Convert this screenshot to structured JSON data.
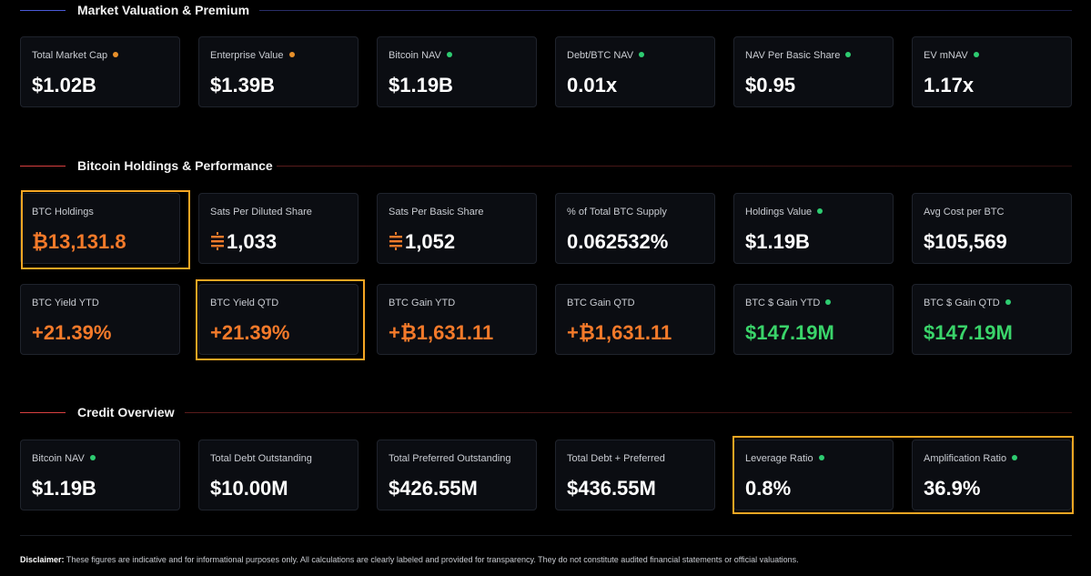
{
  "colors": {
    "accent_orange": "#f47a2a",
    "accent_green": "#3ad46a",
    "dot_orange": "#e8902a",
    "dot_green": "#2ecc71",
    "highlight": "#f5a623",
    "section_market_line": "#4a5ad8",
    "section_red_line": "#d94040"
  },
  "sections": {
    "market": {
      "title": "Market Valuation & Premium",
      "cards": [
        {
          "label": "Total Market Cap",
          "value": "$1.02B",
          "dot": "orange"
        },
        {
          "label": "Enterprise Value",
          "value": "$1.39B",
          "dot": "orange"
        },
        {
          "label": "Bitcoin NAV",
          "value": "$1.19B",
          "dot": "green"
        },
        {
          "label": "Debt/BTC NAV",
          "value": "0.01x",
          "dot": "green"
        },
        {
          "label": "NAV Per Basic Share",
          "value": "$0.95",
          "dot": "green"
        },
        {
          "label": "EV mNAV",
          "value": "1.17x",
          "dot": "green"
        }
      ]
    },
    "holdings": {
      "title": "Bitcoin Holdings & Performance",
      "cards": [
        {
          "label": "BTC Holdings",
          "value": "₿13,131.8",
          "value_color": "orange",
          "icon": "bitcoin-symbol"
        },
        {
          "label": "Sats Per Diluted Share",
          "value": "1,033",
          "icon": "sats-icon"
        },
        {
          "label": "Sats Per Basic Share",
          "value": "1,052",
          "icon": "sats-icon"
        },
        {
          "label": "% of Total BTC Supply",
          "value": "0.062532%"
        },
        {
          "label": "Holdings Value",
          "value": "$1.19B",
          "dot": "green"
        },
        {
          "label": "Avg Cost per BTC",
          "value": "$105,569"
        },
        {
          "label": "BTC Yield YTD",
          "value": "+21.39%",
          "value_color": "orange"
        },
        {
          "label": "BTC Yield QTD",
          "value": "+21.39%",
          "value_color": "orange"
        },
        {
          "label": "BTC Gain YTD",
          "value": "+₿1,631.11",
          "value_color": "orange"
        },
        {
          "label": "BTC Gain QTD",
          "value": "+₿1,631.11",
          "value_color": "orange"
        },
        {
          "label": "BTC $ Gain YTD",
          "value": "$147.19M",
          "value_color": "green",
          "dot": "green"
        },
        {
          "label": "BTC $ Gain QTD",
          "value": "$147.19M",
          "value_color": "green",
          "dot": "green"
        }
      ]
    },
    "credit": {
      "title": "Credit Overview",
      "cards": [
        {
          "label": "Bitcoin NAV",
          "value": "$1.19B",
          "dot": "green"
        },
        {
          "label": "Total Debt Outstanding",
          "value": "$10.00M"
        },
        {
          "label": "Total Preferred Outstanding",
          "value": "$426.55M"
        },
        {
          "label": "Total Debt + Preferred",
          "value": "$436.55M"
        },
        {
          "label": "Leverage Ratio",
          "value": "0.8%",
          "dot": "green"
        },
        {
          "label": "Amplification Ratio",
          "value": "36.9%",
          "dot": "green"
        }
      ]
    }
  },
  "disclaimer": {
    "label": "Disclaimer:",
    "text": " These figures are indicative and for informational purposes only. All calculations are clearly labeled and provided for transparency. They do not constitute audited financial statements or official valuations."
  }
}
